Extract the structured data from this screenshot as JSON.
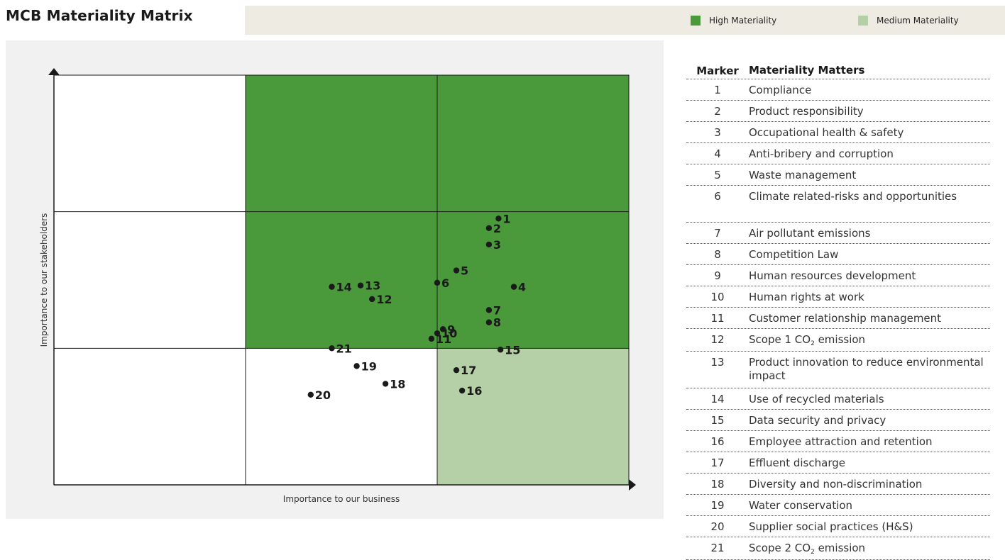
{
  "title": "MCB Materiality Matrix",
  "legend": {
    "high_label": "High Materiality",
    "medium_label": "Medium Materiality",
    "high_color": "#4a9a3c",
    "medium_color": "#b5d0a7"
  },
  "table": {
    "header_marker": "Marker",
    "header_matter": "Materiality Matters",
    "rows": [
      {
        "marker": "1",
        "matter": "Compliance"
      },
      {
        "marker": "2",
        "matter": "Product responsibility"
      },
      {
        "marker": "3",
        "matter": "Occupational health & safety"
      },
      {
        "marker": "4",
        "matter": "Anti-bribery and corruption"
      },
      {
        "marker": "5",
        "matter": "Waste management"
      },
      {
        "marker": "6",
        "matter": "Climate related-risks and opportunities"
      },
      {
        "marker": "7",
        "matter": "Air pollutant emissions"
      },
      {
        "marker": "8",
        "matter": "Competition Law"
      },
      {
        "marker": "9",
        "matter": "Human resources development"
      },
      {
        "marker": "10",
        "matter": "Human rights at work"
      },
      {
        "marker": "11",
        "matter": "Customer relationship management"
      },
      {
        "marker": "12",
        "matter": "Scope 1 CO",
        "sub": "2",
        "suffix": " emission"
      },
      {
        "marker": "13",
        "matter": "Product innovation to reduce environmental impact"
      },
      {
        "marker": "14",
        "matter": "Use of recycled materials"
      },
      {
        "marker": "15",
        "matter": "Data security and privacy"
      },
      {
        "marker": "16",
        "matter": "Employee attraction and retention"
      },
      {
        "marker": "17",
        "matter": "Effluent discharge"
      },
      {
        "marker": "18",
        "matter": "Diversity and non-discrimination"
      },
      {
        "marker": "19",
        "matter": "Water conservation"
      },
      {
        "marker": "20",
        "matter": "Supplier social practices (H&S)"
      },
      {
        "marker": "21",
        "matter": "Scope 2 CO",
        "sub": "2",
        "suffix": " emission"
      }
    ]
  },
  "chart_data": {
    "type": "scatter",
    "xlabel": "Importance to our business",
    "ylabel": "Importance to our stakeholders",
    "xlim": [
      0,
      3
    ],
    "ylim": [
      0,
      3
    ],
    "grid": "3x3",
    "zones": [
      {
        "col": 1,
        "row": 2,
        "level": "high"
      },
      {
        "col": 2,
        "row": 2,
        "level": "high"
      },
      {
        "col": 1,
        "row": 1,
        "level": "high"
      },
      {
        "col": 2,
        "row": 1,
        "level": "high"
      },
      {
        "col": 2,
        "row": 0,
        "level": "medium"
      }
    ],
    "points": [
      {
        "label": "1",
        "x": 2.32,
        "y": 1.95
      },
      {
        "label": "2",
        "x": 2.27,
        "y": 1.88
      },
      {
        "label": "3",
        "x": 2.27,
        "y": 1.76
      },
      {
        "label": "4",
        "x": 2.4,
        "y": 1.45
      },
      {
        "label": "5",
        "x": 2.1,
        "y": 1.57
      },
      {
        "label": "6",
        "x": 2.0,
        "y": 1.48
      },
      {
        "label": "7",
        "x": 2.27,
        "y": 1.28
      },
      {
        "label": "8",
        "x": 2.27,
        "y": 1.19
      },
      {
        "label": "9",
        "x": 2.03,
        "y": 1.14
      },
      {
        "label": "10",
        "x": 2.0,
        "y": 1.11
      },
      {
        "label": "11",
        "x": 1.97,
        "y": 1.07
      },
      {
        "label": "12",
        "x": 1.66,
        "y": 1.36
      },
      {
        "label": "13",
        "x": 1.6,
        "y": 1.46
      },
      {
        "label": "14",
        "x": 1.45,
        "y": 1.45
      },
      {
        "label": "15",
        "x": 2.33,
        "y": 0.99
      },
      {
        "label": "16",
        "x": 2.13,
        "y": 0.69
      },
      {
        "label": "17",
        "x": 2.1,
        "y": 0.84
      },
      {
        "label": "18",
        "x": 1.73,
        "y": 0.74
      },
      {
        "label": "19",
        "x": 1.58,
        "y": 0.87
      },
      {
        "label": "20",
        "x": 1.34,
        "y": 0.66
      },
      {
        "label": "21",
        "x": 1.45,
        "y": 1.0
      }
    ]
  }
}
